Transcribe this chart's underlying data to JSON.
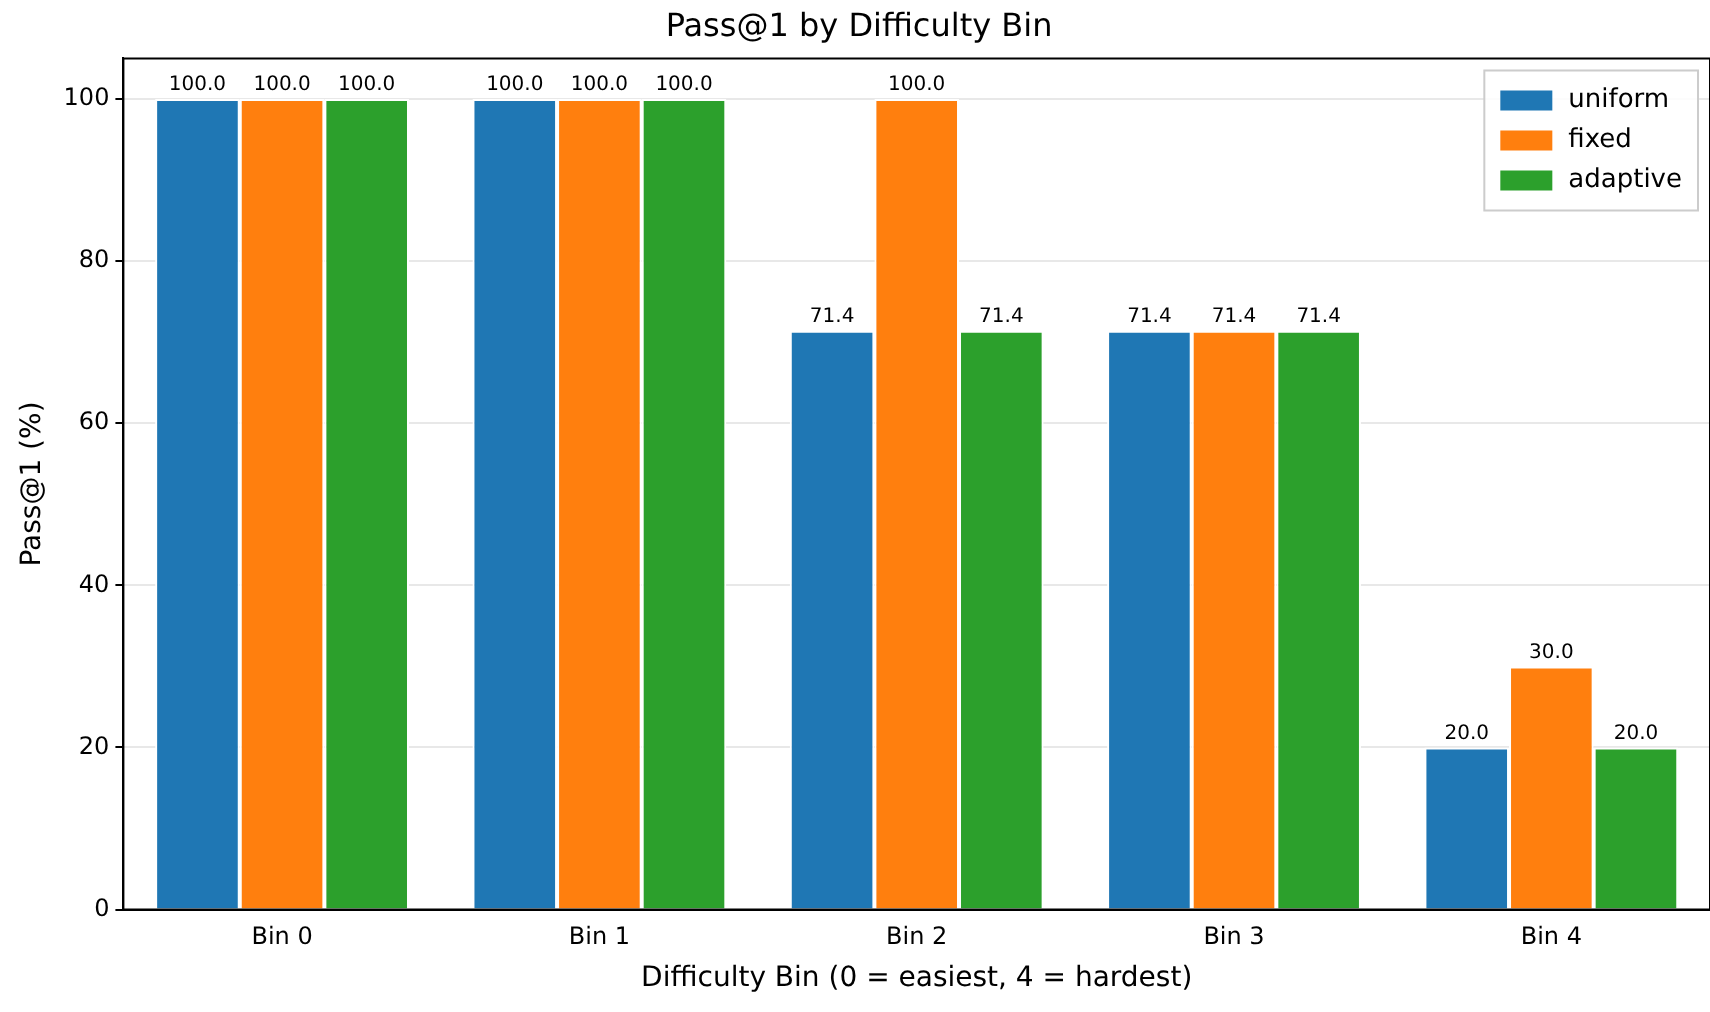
{
  "chart_data": {
    "type": "bar",
    "title": "Pass@1 by Difficulty Bin",
    "xlabel": "Difficulty Bin (0 = easiest, 4 = hardest)",
    "ylabel": "Pass@1 (%)",
    "categories": [
      "Bin 0",
      "Bin 1",
      "Bin 2",
      "Bin 3",
      "Bin 4"
    ],
    "series": [
      {
        "name": "uniform",
        "color": "#1f77b4",
        "values": [
          100,
          100,
          71.4,
          71.4,
          20
        ],
        "value_labels": [
          "100.0",
          "100.0",
          "71.4",
          "71.4",
          "20.0"
        ]
      },
      {
        "name": "fixed",
        "color": "#ff7f0e",
        "values": [
          100,
          100,
          100,
          71.4,
          30
        ],
        "value_labels": [
          "100.0",
          "100.0",
          "100.0",
          "71.4",
          "30.0"
        ]
      },
      {
        "name": "adaptive",
        "color": "#2ca02c",
        "values": [
          100,
          100,
          71.4,
          71.4,
          20
        ],
        "value_labels": [
          "100.0",
          "100.0",
          "71.4",
          "71.4",
          "20.0"
        ]
      }
    ],
    "ylim": [
      0,
      105
    ],
    "yticks": [
      0,
      20,
      40,
      60,
      80,
      100
    ],
    "grid": "y",
    "legend": "top right"
  }
}
